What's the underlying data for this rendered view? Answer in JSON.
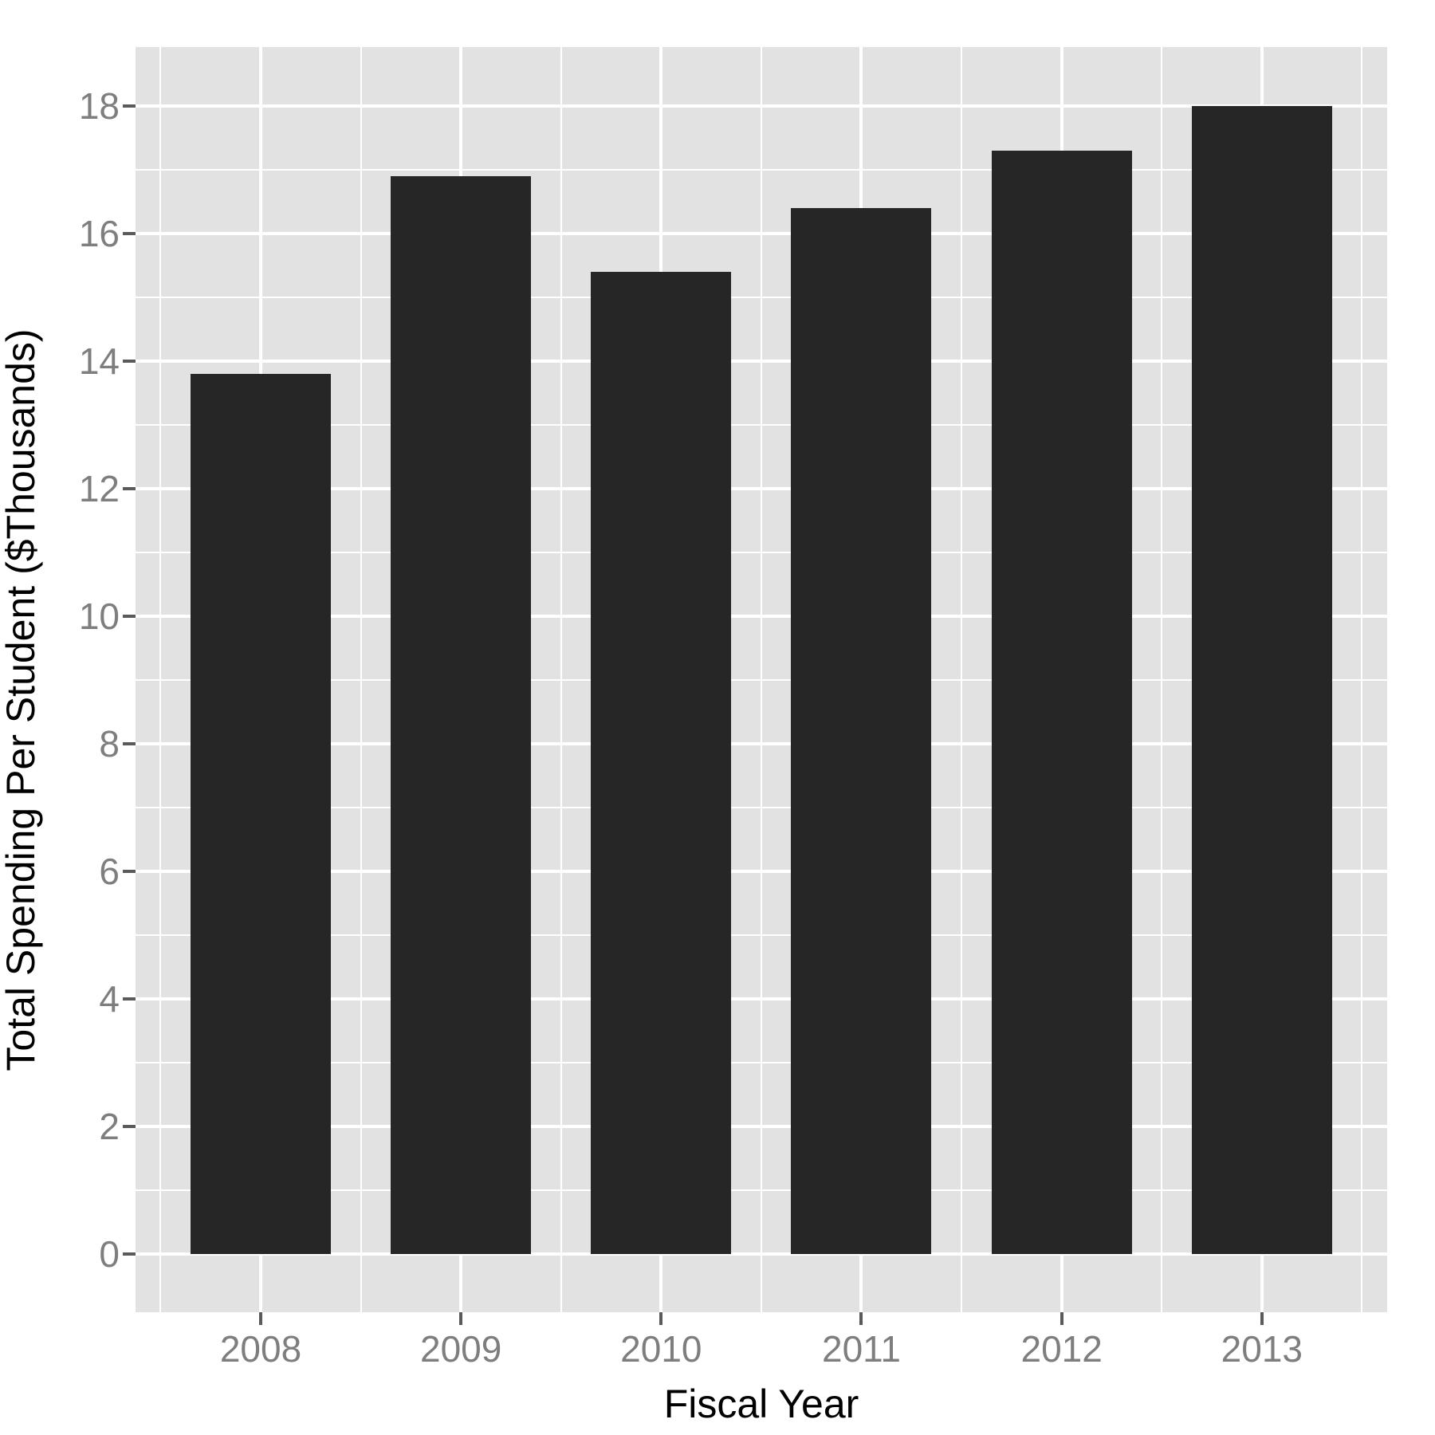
{
  "chart_data": {
    "type": "bar",
    "categories": [
      "2008",
      "2009",
      "2010",
      "2011",
      "2012",
      "2013"
    ],
    "values": [
      13.8,
      16.9,
      15.4,
      16.4,
      17.3,
      18.0
    ],
    "title": "",
    "xlabel": "Fiscal Year",
    "ylabel": "Total Spending Per Student ($Thousands)",
    "ylim": [
      -0.9,
      18.9
    ],
    "y_major_ticks": [
      0,
      2,
      4,
      6,
      8,
      10,
      12,
      14,
      16,
      18
    ],
    "y_minor_ticks": [
      1,
      3,
      5,
      7,
      9,
      11,
      13,
      15,
      17
    ],
    "grid": "on",
    "legend": "none",
    "colors": {
      "bar_fill": "#262626",
      "panel_background": "#e2e2e2",
      "gridline": "#ffffff",
      "tick_label": "#7e7e7e",
      "tick_mark": "#5a5a5a",
      "axis_title": "#000000",
      "page_background": "#ffffff"
    }
  }
}
